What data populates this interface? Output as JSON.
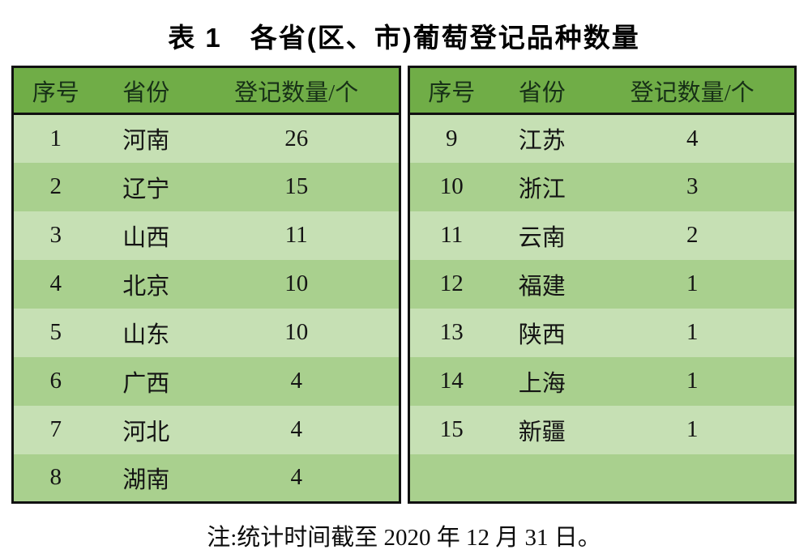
{
  "title": "表 1　各省(区、市)葡萄登记品种数量",
  "columns": [
    "序号",
    "省份",
    "登记数量/个"
  ],
  "left_rows": [
    {
      "no": "1",
      "province": "河南",
      "count": "26"
    },
    {
      "no": "2",
      "province": "辽宁",
      "count": "15"
    },
    {
      "no": "3",
      "province": "山西",
      "count": "11"
    },
    {
      "no": "4",
      "province": "北京",
      "count": "10"
    },
    {
      "no": "5",
      "province": "山东",
      "count": "10"
    },
    {
      "no": "6",
      "province": "广西",
      "count": "4"
    },
    {
      "no": "7",
      "province": "河北",
      "count": "4"
    },
    {
      "no": "8",
      "province": "湖南",
      "count": "4"
    }
  ],
  "right_rows": [
    {
      "no": "9",
      "province": "江苏",
      "count": "4"
    },
    {
      "no": "10",
      "province": "浙江",
      "count": "3"
    },
    {
      "no": "11",
      "province": "云南",
      "count": "2"
    },
    {
      "no": "12",
      "province": "福建",
      "count": "1"
    },
    {
      "no": "13",
      "province": "陕西",
      "count": "1"
    },
    {
      "no": "14",
      "province": "上海",
      "count": "1"
    },
    {
      "no": "15",
      "province": "新疆",
      "count": "1"
    },
    {
      "no": "",
      "province": "",
      "count": ""
    }
  ],
  "note": "注:统计时间截至 2020 年 12 月 31 日。",
  "colors": {
    "header_bg": "#70ad47",
    "row_light": "#c6e0b4",
    "row_dark": "#a9d08e",
    "border": "#111111",
    "text": "#1a1a1a",
    "page_bg": "#ffffff"
  },
  "chart_data": {
    "type": "table",
    "title": "表 1　各省(区、市)葡萄登记品种数量",
    "columns": [
      "序号",
      "省份",
      "登记数量/个"
    ],
    "rows": [
      [
        1,
        "河南",
        26
      ],
      [
        2,
        "辽宁",
        15
      ],
      [
        3,
        "山西",
        11
      ],
      [
        4,
        "北京",
        10
      ],
      [
        5,
        "山东",
        10
      ],
      [
        6,
        "广西",
        4
      ],
      [
        7,
        "河北",
        4
      ],
      [
        8,
        "湖南",
        4
      ],
      [
        9,
        "江苏",
        4
      ],
      [
        10,
        "浙江",
        3
      ],
      [
        11,
        "云南",
        2
      ],
      [
        12,
        "福建",
        1
      ],
      [
        13,
        "陕西",
        1
      ],
      [
        14,
        "上海",
        1
      ],
      [
        15,
        "新疆",
        1
      ]
    ],
    "note": "注:统计时间截至 2020 年 12 月 31 日。",
    "layout": "two side-by-side halves, rows 1-8 left, rows 9-15 right, banded green rows"
  }
}
